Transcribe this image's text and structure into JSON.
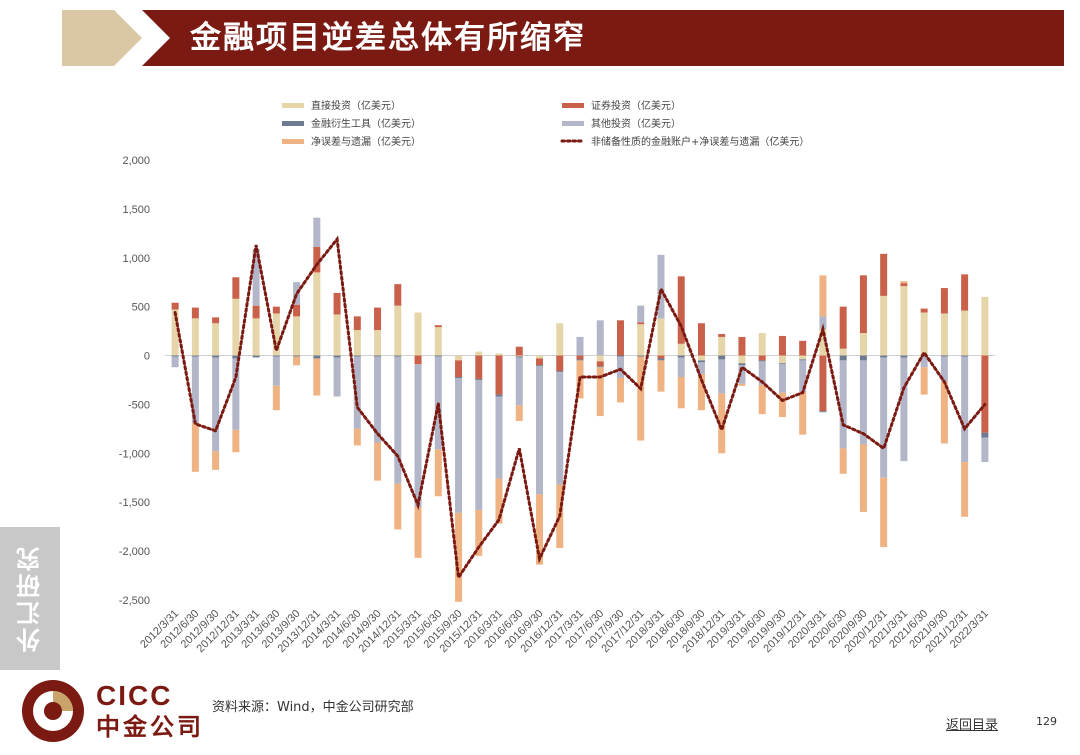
{
  "header": {
    "title": "金融项目逆差总体有所缩窄"
  },
  "sidebar_tab": {
    "label": "外汇研究"
  },
  "footer": {
    "brand_en": "CICC",
    "brand_cn": "中金公司",
    "source": "资料来源：Wind，中金公司研究部",
    "back_link": "返回目录",
    "page_number": "129"
  },
  "colors": {
    "banner": "#7a1a12",
    "banner_deco": "#d9c7a6",
    "direct": "#e6d5a8",
    "securities": "#c9604a",
    "derivatives": "#6e7a92",
    "other": "#b2b6c8",
    "errors": "#efb383",
    "line": "#7a1a12"
  },
  "chart_data": {
    "type": "bar",
    "stacked": true,
    "categories": [
      "2012/3/31",
      "2012/6/30",
      "2012/9/30",
      "2012/12/31",
      "2013/3/31",
      "2013/6/30",
      "2013/9/30",
      "2013/12/31",
      "2014/3/31",
      "2014/6/30",
      "2014/9/30",
      "2014/12/31",
      "2015/3/31",
      "2015/6/30",
      "2015/9/30",
      "2015/12/31",
      "2016/3/31",
      "2016/6/30",
      "2016/9/30",
      "2016/12/31",
      "2017/3/31",
      "2017/6/30",
      "2017/9/30",
      "2017/12/31",
      "2018/3/31",
      "2018/6/30",
      "2018/9/30",
      "2018/12/31",
      "2019/3/31",
      "2019/6/30",
      "2019/9/30",
      "2019/12/31",
      "2020/3/31",
      "2020/6/30",
      "2020/9/30",
      "2020/12/31",
      "2021/3/31",
      "2021/6/30",
      "2021/9/30",
      "2021/12/31",
      "2022/3/31"
    ],
    "ylim": [
      -2500,
      2000
    ],
    "yticks": [
      2000,
      1500,
      1000,
      500,
      0,
      -500,
      -1000,
      -1500,
      -2000,
      -2500
    ],
    "ytick_labels": [
      "2,000",
      "1,500",
      "1,000",
      "500",
      "0",
      "-500",
      "-1,000",
      "-1,500",
      "-2,000",
      "-2,500"
    ],
    "legend_position": "top",
    "series": [
      {
        "name": "直接投资（亿美元）",
        "key": "direct",
        "values": [
          470,
          380,
          330,
          580,
          380,
          430,
          400,
          850,
          420,
          260,
          260,
          510,
          440,
          290,
          -50,
          40,
          20,
          -10,
          -30,
          330,
          0,
          -60,
          0,
          320,
          380,
          120,
          -50,
          190,
          -80,
          230,
          -80,
          -40,
          270,
          70,
          230,
          610,
          710,
          440,
          430,
          460,
          600
        ]
      },
      {
        "name": "证券投资（亿美元）",
        "key": "securities",
        "values": [
          70,
          110,
          60,
          220,
          130,
          70,
          120,
          260,
          220,
          140,
          230,
          220,
          -90,
          20,
          -170,
          -240,
          -400,
          90,
          -70,
          -160,
          -40,
          -50,
          360,
          20,
          -30,
          690,
          330,
          30,
          190,
          -50,
          200,
          150,
          -570,
          430,
          590,
          430,
          30,
          40,
          260,
          370,
          -790
        ]
      },
      {
        "name": "金融衍生工具（亿美元）",
        "key": "derivatives",
        "values": [
          -10,
          -10,
          -20,
          -30,
          -20,
          -10,
          -10,
          -30,
          -20,
          -10,
          -10,
          -10,
          0,
          -10,
          -10,
          -10,
          -20,
          -10,
          -10,
          -10,
          -10,
          -10,
          -10,
          -10,
          -20,
          -20,
          -20,
          -40,
          -20,
          -10,
          -10,
          -10,
          -10,
          -50,
          -50,
          -20,
          -20,
          -10,
          -10,
          -10,
          -50
        ]
      },
      {
        "name": "其他投资（亿美元）",
        "key": "other",
        "values": [
          -110,
          -680,
          -960,
          -730,
          580,
          -300,
          230,
          300,
          -400,
          -740,
          -880,
          -1300,
          -1460,
          -950,
          -1380,
          -1330,
          -840,
          -490,
          -1310,
          -1150,
          190,
          360,
          -220,
          170,
          650,
          -200,
          -120,
          -350,
          -190,
          -240,
          -290,
          -320,
          130,
          -900,
          -860,
          -1230,
          -1060,
          -110,
          -260,
          -1080,
          -250
        ]
      },
      {
        "name": "净误差与遗漏（亿美元）",
        "key": "errors",
        "values": [
          0,
          -500,
          -190,
          -230,
          0,
          -250,
          -90,
          -380,
          0,
          -170,
          -390,
          -470,
          -520,
          -480,
          -910,
          -470,
          -460,
          -160,
          -720,
          -650,
          -390,
          -500,
          -250,
          -860,
          -320,
          -320,
          -370,
          -610,
          -20,
          -300,
          -250,
          -440,
          420,
          -260,
          -690,
          -710,
          20,
          -280,
          -630,
          -560,
          0
        ]
      }
    ],
    "line_series": {
      "name": "非储备性质的金融账户+净误差与遗漏（亿美元）",
      "values": [
        440,
        -700,
        -770,
        -220,
        1130,
        50,
        630,
        930,
        1190,
        -530,
        -800,
        -1030,
        -1530,
        -490,
        -2270,
        -1960,
        -1680,
        -950,
        -2080,
        -1640,
        -220,
        -220,
        -140,
        -340,
        680,
        300,
        -250,
        -760,
        -120,
        -270,
        -460,
        -380,
        270,
        -710,
        -800,
        -950,
        -330,
        30,
        -270,
        -750,
        -500
      ]
    }
  }
}
